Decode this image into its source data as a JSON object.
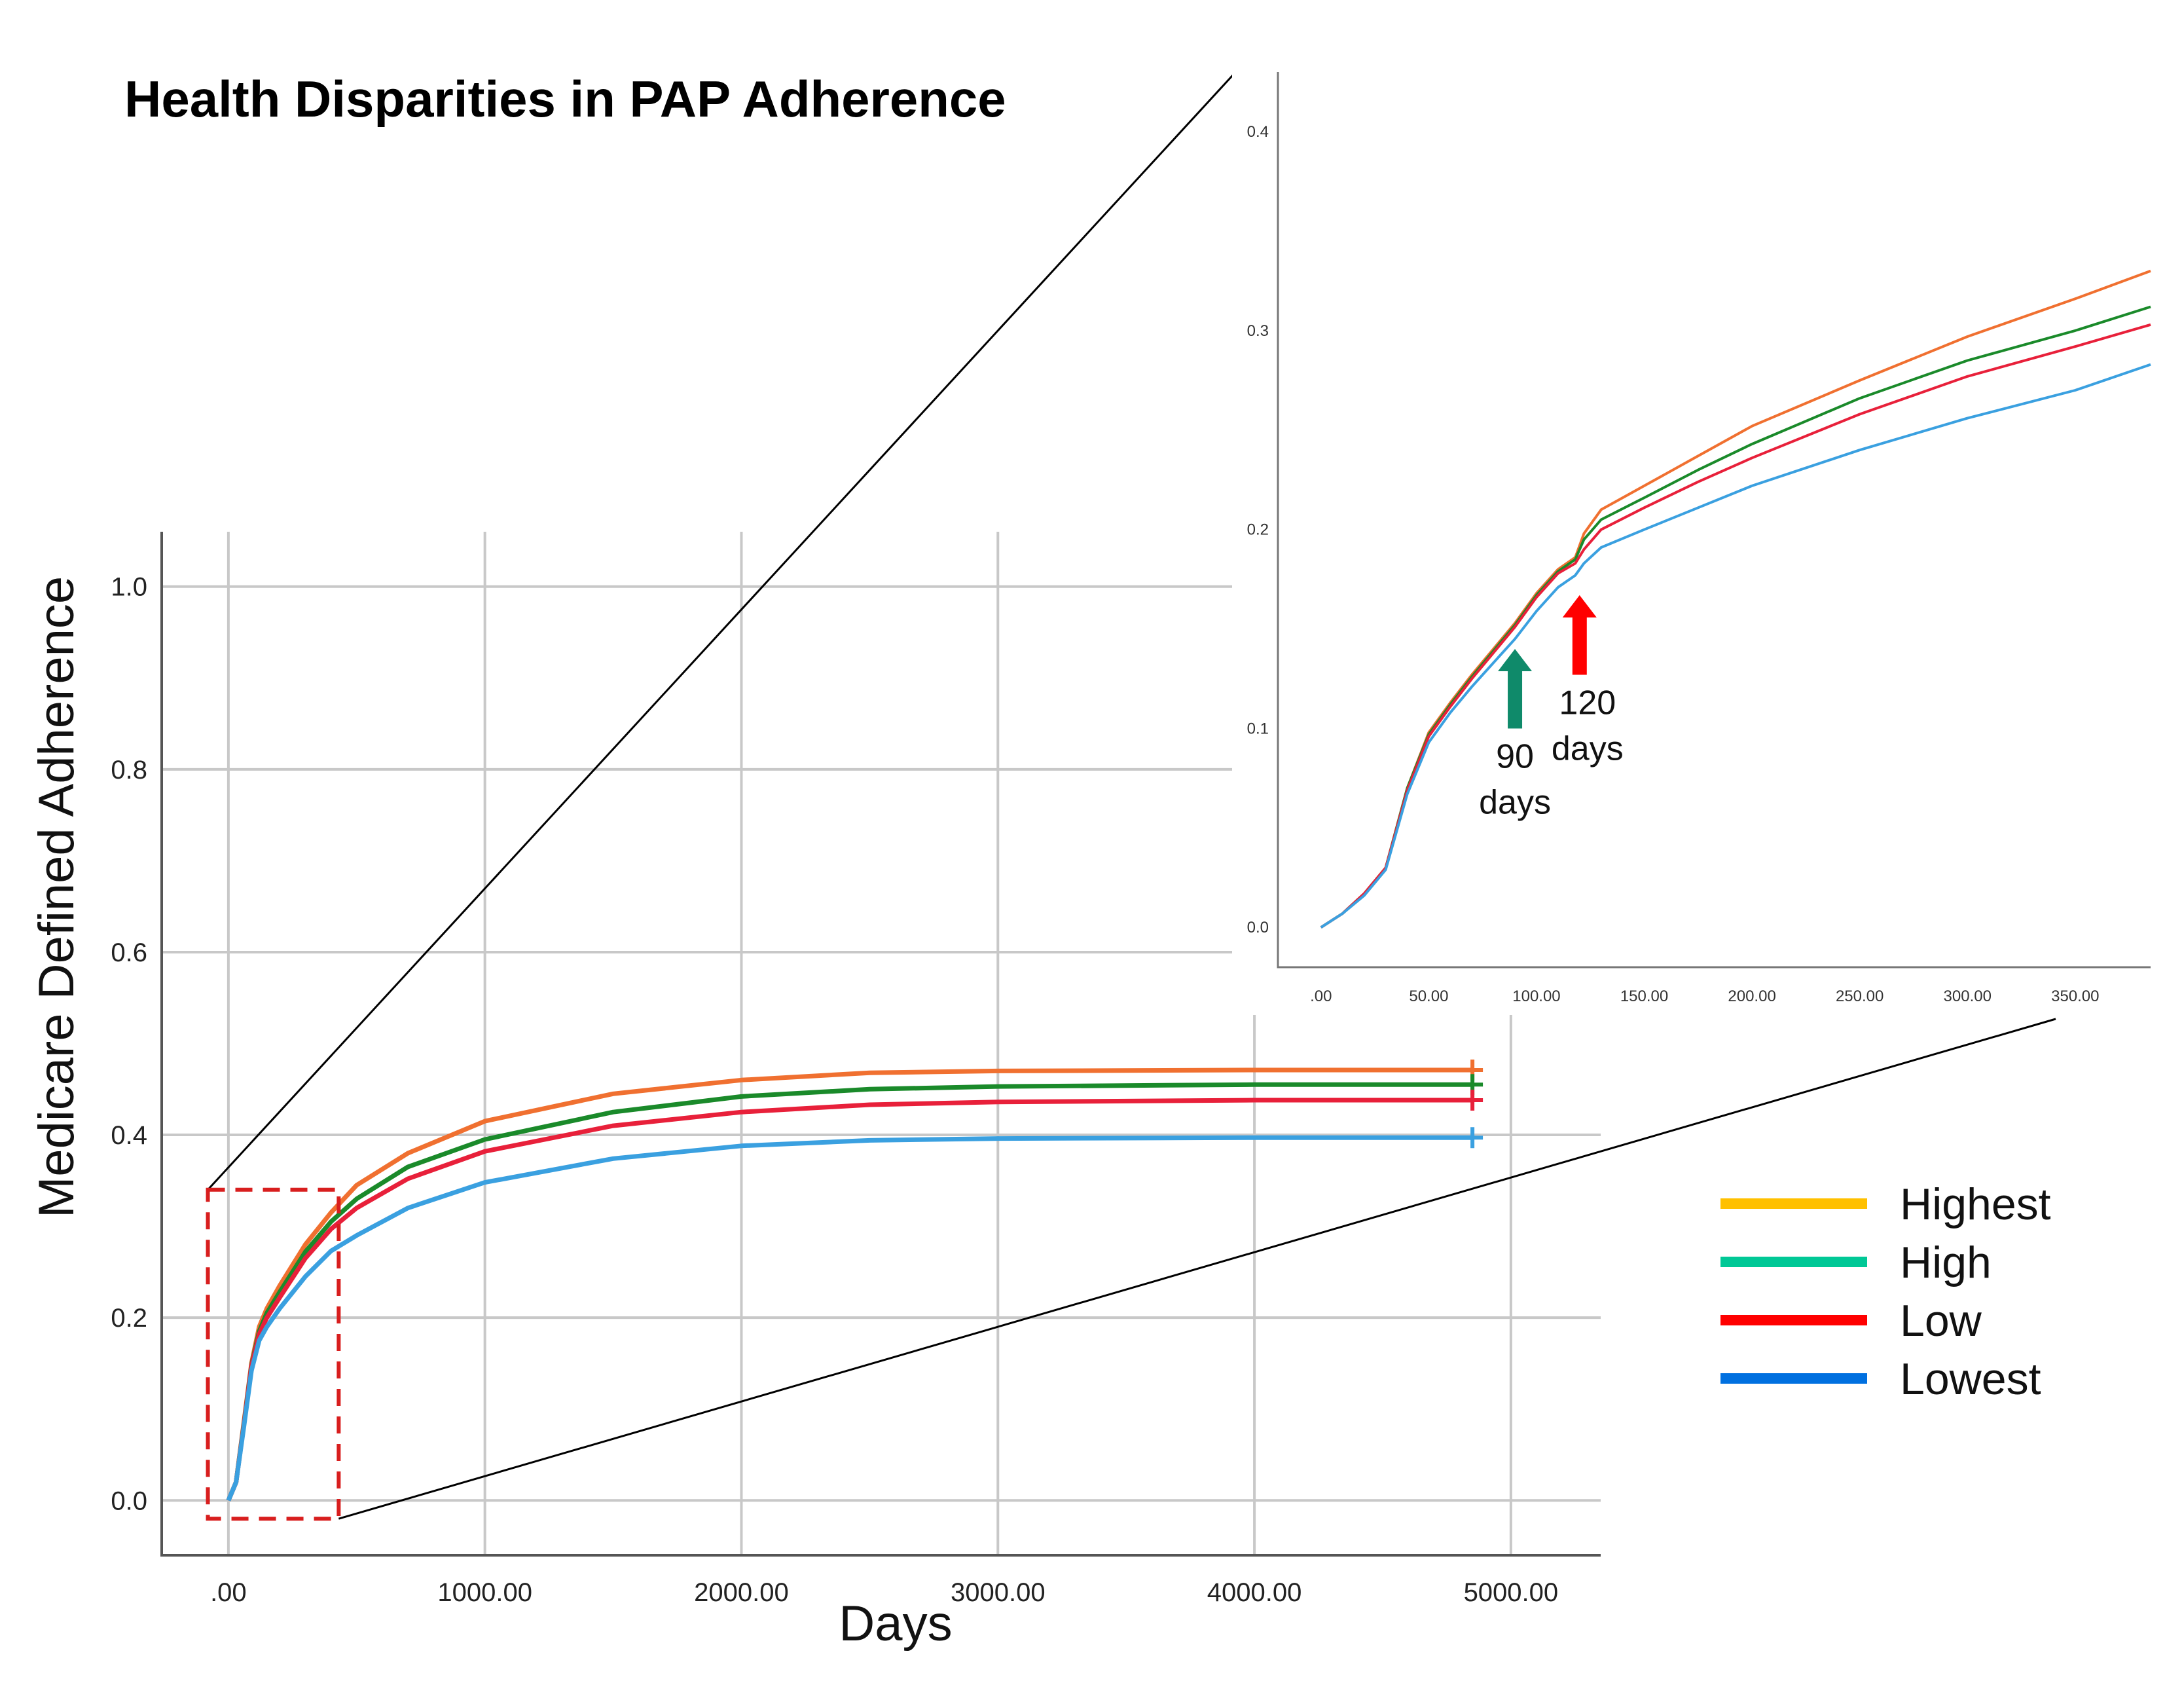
{
  "title": "Health Disparities in PAP Adherence",
  "colors": {
    "highest": "#f07030",
    "high": "#1a8a2a",
    "low": "#e8203a",
    "lowest": "#3aa0e0",
    "legend_highest": "#ffc000",
    "legend_high": "#00c896",
    "legend_low": "#ff0000",
    "legend_lowest": "#0070e0",
    "zoom_box": "#d81e1e",
    "arrow_90": "#0f8a6a",
    "arrow_120": "#ff0000"
  },
  "chart_data": [
    {
      "id": "main",
      "type": "line",
      "title": "Health Disparities in PAP Adherence",
      "xlabel": "Days",
      "ylabel": "Medicare Defined Adherence",
      "xlim": [
        -260,
        5350
      ],
      "ylim": [
        -0.06,
        1.06
      ],
      "xticks": [
        0,
        1000,
        2000,
        3000,
        4000,
        5000
      ],
      "xtick_labels": [
        ".00",
        "1000.00",
        "2000.00",
        "3000.00",
        "4000.00",
        "5000.00"
      ],
      "yticks": [
        0.0,
        0.2,
        0.4,
        0.6,
        0.8,
        1.0
      ],
      "ytick_labels": [
        "0.0",
        "0.2",
        "0.4",
        "0.6",
        "0.8",
        "1.0"
      ],
      "grid": true,
      "x": [
        0,
        30,
        60,
        90,
        120,
        150,
        200,
        300,
        400,
        500,
        700,
        1000,
        1500,
        2000,
        2500,
        3000,
        4000,
        4850
      ],
      "series": [
        {
          "name": "Highest",
          "values": [
            0,
            0.02,
            0.085,
            0.15,
            0.19,
            0.21,
            0.235,
            0.28,
            0.315,
            0.345,
            0.38,
            0.415,
            0.445,
            0.46,
            0.468,
            0.47,
            0.471,
            0.471
          ]
        },
        {
          "name": "High",
          "values": [
            0,
            0.02,
            0.083,
            0.148,
            0.185,
            0.205,
            0.228,
            0.272,
            0.305,
            0.33,
            0.365,
            0.395,
            0.425,
            0.442,
            0.45,
            0.453,
            0.455,
            0.455
          ]
        },
        {
          "name": "Low",
          "values": [
            0,
            0.02,
            0.082,
            0.147,
            0.182,
            0.2,
            0.222,
            0.265,
            0.297,
            0.32,
            0.352,
            0.382,
            0.41,
            0.425,
            0.433,
            0.436,
            0.438,
            0.438
          ]
        },
        {
          "name": "Lowest",
          "values": [
            0,
            0.02,
            0.08,
            0.142,
            0.175,
            0.19,
            0.21,
            0.245,
            0.273,
            0.29,
            0.32,
            0.348,
            0.374,
            0.388,
            0.394,
            0.396,
            0.397,
            0.397
          ]
        }
      ],
      "zoom_box": {
        "x": [
          -80,
          430
        ],
        "y": [
          -0.02,
          0.34
        ]
      }
    },
    {
      "id": "inset",
      "type": "line",
      "xlim": [
        -20,
        385
      ],
      "ylim": [
        -0.02,
        0.43
      ],
      "xticks": [
        0,
        50,
        100,
        150,
        200,
        250,
        300,
        350
      ],
      "xtick_labels": [
        ".00",
        "50.00",
        "100.00",
        "150.00",
        "200.00",
        "250.00",
        "300.00",
        "350.00"
      ],
      "yticks": [
        0.0,
        0.1,
        0.2,
        0.3,
        0.4
      ],
      "ytick_labels": [
        "0.0",
        "0.1",
        "0.2",
        "0.3",
        "0.4"
      ],
      "grid": false,
      "x": [
        0,
        10,
        20,
        30,
        40,
        50,
        60,
        70,
        80,
        90,
        100,
        110,
        118,
        122,
        130,
        150,
        175,
        200,
        250,
        300,
        350,
        385
      ],
      "series": [
        {
          "name": "Highest",
          "values": [
            0,
            0.007,
            0.017,
            0.03,
            0.07,
            0.098,
            0.113,
            0.127,
            0.14,
            0.153,
            0.168,
            0.18,
            0.186,
            0.198,
            0.21,
            0.222,
            0.237,
            0.252,
            0.275,
            0.297,
            0.316,
            0.33
          ]
        },
        {
          "name": "High",
          "values": [
            0,
            0.007,
            0.017,
            0.03,
            0.07,
            0.097,
            0.112,
            0.126,
            0.139,
            0.152,
            0.167,
            0.179,
            0.185,
            0.195,
            0.205,
            0.216,
            0.23,
            0.243,
            0.266,
            0.285,
            0.3,
            0.312
          ]
        },
        {
          "name": "Low",
          "values": [
            0,
            0.007,
            0.017,
            0.03,
            0.069,
            0.096,
            0.111,
            0.125,
            0.138,
            0.151,
            0.166,
            0.178,
            0.183,
            0.19,
            0.2,
            0.211,
            0.224,
            0.236,
            0.258,
            0.277,
            0.292,
            0.303
          ]
        },
        {
          "name": "Lowest",
          "values": [
            0,
            0.007,
            0.016,
            0.029,
            0.067,
            0.093,
            0.108,
            0.121,
            0.133,
            0.145,
            0.159,
            0.171,
            0.177,
            0.183,
            0.191,
            0.2,
            0.211,
            0.222,
            0.24,
            0.256,
            0.27,
            0.283
          ]
        }
      ],
      "annotations": [
        {
          "label_line1": "90",
          "label_line2": "days",
          "x": 90,
          "arrow_tip_y": 0.14,
          "arrow_tail_y": 0.1
        },
        {
          "label_line1": "120",
          "label_line2": "days",
          "x": 120,
          "arrow_tip_y": 0.167,
          "arrow_tail_y": 0.127
        }
      ]
    }
  ],
  "legend": [
    {
      "label": "Highest"
    },
    {
      "label": "High"
    },
    {
      "label": "Low"
    },
    {
      "label": "Lowest"
    }
  ]
}
